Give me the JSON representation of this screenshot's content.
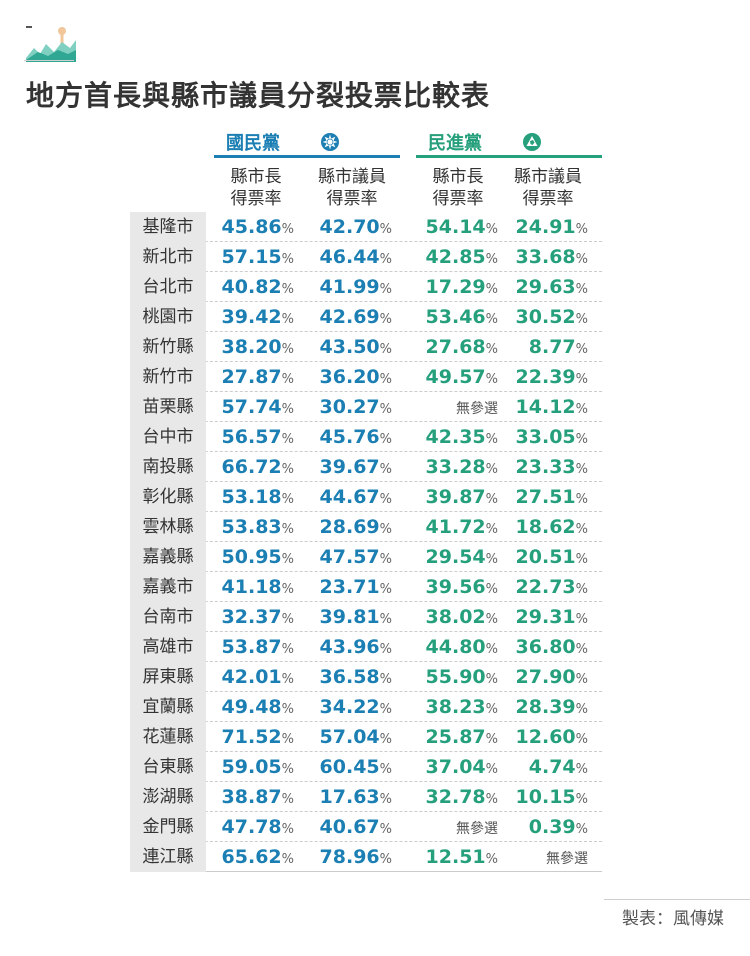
{
  "title": "地方首長與縣市議員分裂投票比較表",
  "colors": {
    "kmt": "#1b7fb3",
    "dpp": "#26a07c"
  },
  "parties": {
    "kmt": "國民黨",
    "dpp": "民進黨"
  },
  "columns": [
    {
      "l1": "縣市長",
      "l2": "得票率"
    },
    {
      "l1": "縣市議員",
      "l2": "得票率"
    },
    {
      "l1": "縣市長",
      "l2": "得票率"
    },
    {
      "l1": "縣市議員",
      "l2": "得票率"
    }
  ],
  "na_text": "無參選",
  "pct_symbol": "%",
  "credit": "製表：風傳媒",
  "chart_data": {
    "type": "table",
    "title": "地方首長與縣市議員分裂投票比較表",
    "series": [
      {
        "name": "國民黨 縣市長得票率"
      },
      {
        "name": "國民黨 縣市議員得票率"
      },
      {
        "name": "民進黨 縣市長得票率"
      },
      {
        "name": "民進黨 縣市議員得票率"
      }
    ],
    "rows": [
      {
        "county": "基隆市",
        "values": [
          "45.86",
          "42.70",
          "54.14",
          "24.91"
        ]
      },
      {
        "county": "新北市",
        "values": [
          "57.15",
          "46.44",
          "42.85",
          "33.68"
        ]
      },
      {
        "county": "台北市",
        "values": [
          "40.82",
          "41.99",
          "17.29",
          "29.63"
        ]
      },
      {
        "county": "桃園市",
        "values": [
          "39.42",
          "42.69",
          "53.46",
          "30.52"
        ]
      },
      {
        "county": "新竹縣",
        "values": [
          "38.20",
          "43.50",
          "27.68",
          "8.77"
        ]
      },
      {
        "county": "新竹市",
        "values": [
          "27.87",
          "36.20",
          "49.57",
          "22.39"
        ]
      },
      {
        "county": "苗栗縣",
        "values": [
          "57.74",
          "30.27",
          null,
          "14.12"
        ]
      },
      {
        "county": "台中市",
        "values": [
          "56.57",
          "45.76",
          "42.35",
          "33.05"
        ]
      },
      {
        "county": "南投縣",
        "values": [
          "66.72",
          "39.67",
          "33.28",
          "23.33"
        ]
      },
      {
        "county": "彰化縣",
        "values": [
          "53.18",
          "44.67",
          "39.87",
          "27.51"
        ]
      },
      {
        "county": "雲林縣",
        "values": [
          "53.83",
          "28.69",
          "41.72",
          "18.62"
        ]
      },
      {
        "county": "嘉義縣",
        "values": [
          "50.95",
          "47.57",
          "29.54",
          "20.51"
        ]
      },
      {
        "county": "嘉義市",
        "values": [
          "41.18",
          "23.71",
          "39.56",
          "22.73"
        ]
      },
      {
        "county": "台南市",
        "values": [
          "32.37",
          "39.81",
          "38.02",
          "29.31"
        ]
      },
      {
        "county": "高雄市",
        "values": [
          "53.87",
          "43.96",
          "44.80",
          "36.80"
        ]
      },
      {
        "county": "屏東縣",
        "values": [
          "42.01",
          "36.58",
          "55.90",
          "27.90"
        ]
      },
      {
        "county": "宜蘭縣",
        "values": [
          "49.48",
          "34.22",
          "38.23",
          "28.39"
        ]
      },
      {
        "county": "花蓮縣",
        "values": [
          "71.52",
          "57.04",
          "25.87",
          "12.60"
        ]
      },
      {
        "county": "台東縣",
        "values": [
          "59.05",
          "60.45",
          "37.04",
          "4.74"
        ]
      },
      {
        "county": "澎湖縣",
        "values": [
          "38.87",
          "17.63",
          "32.78",
          "10.15"
        ]
      },
      {
        "county": "金門縣",
        "values": [
          "47.78",
          "40.67",
          null,
          "0.39"
        ]
      },
      {
        "county": "連江縣",
        "values": [
          "65.62",
          "78.96",
          "12.51",
          null
        ]
      }
    ]
  }
}
